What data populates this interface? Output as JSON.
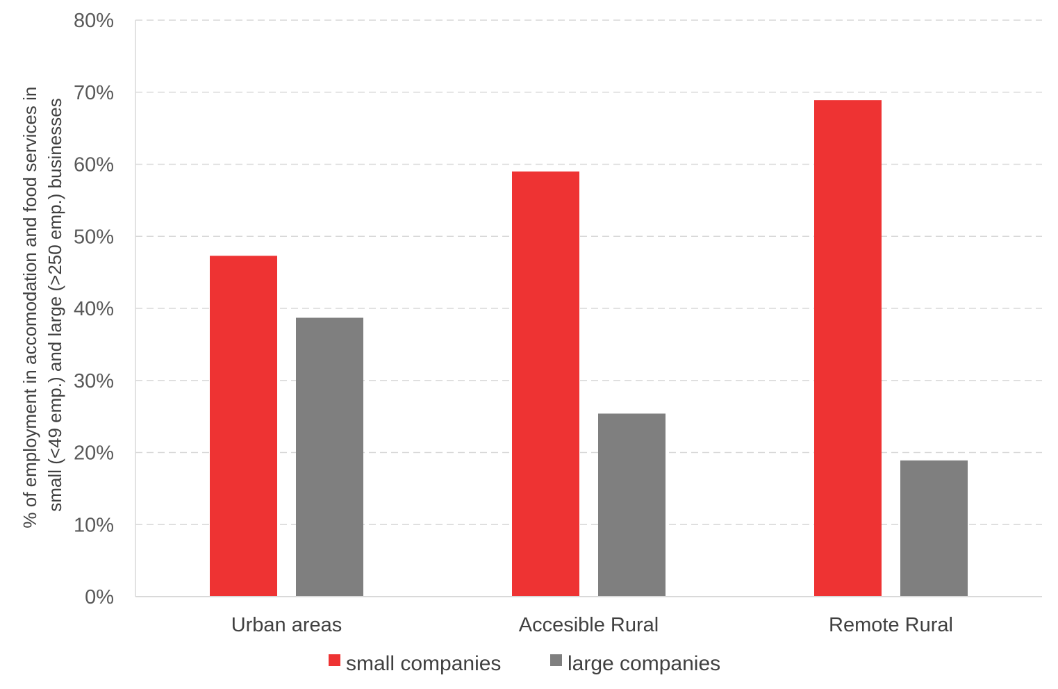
{
  "chart_data": {
    "type": "bar",
    "categories": [
      "Urban areas",
      "Accesible Rural",
      "Remote Rural"
    ],
    "series": [
      {
        "name": "small companies",
        "values": [
          47.3,
          59.0,
          68.9
        ],
        "color": "#ee3333"
      },
      {
        "name": "large companies",
        "values": [
          38.7,
          25.4,
          18.9
        ],
        "color": "#7f7f7f"
      }
    ],
    "ylabel_lines": [
      "% of employment in accomodation and food services in",
      "small (<49 emp.) and large (>250 emp.) businesses"
    ],
    "xlabel": "",
    "ylim": [
      0,
      80
    ],
    "yticks": [
      "0%",
      "10%",
      "20%",
      "30%",
      "40%",
      "50%",
      "60%",
      "70%",
      "80%"
    ],
    "grid": true,
    "legend_position": "bottom"
  }
}
